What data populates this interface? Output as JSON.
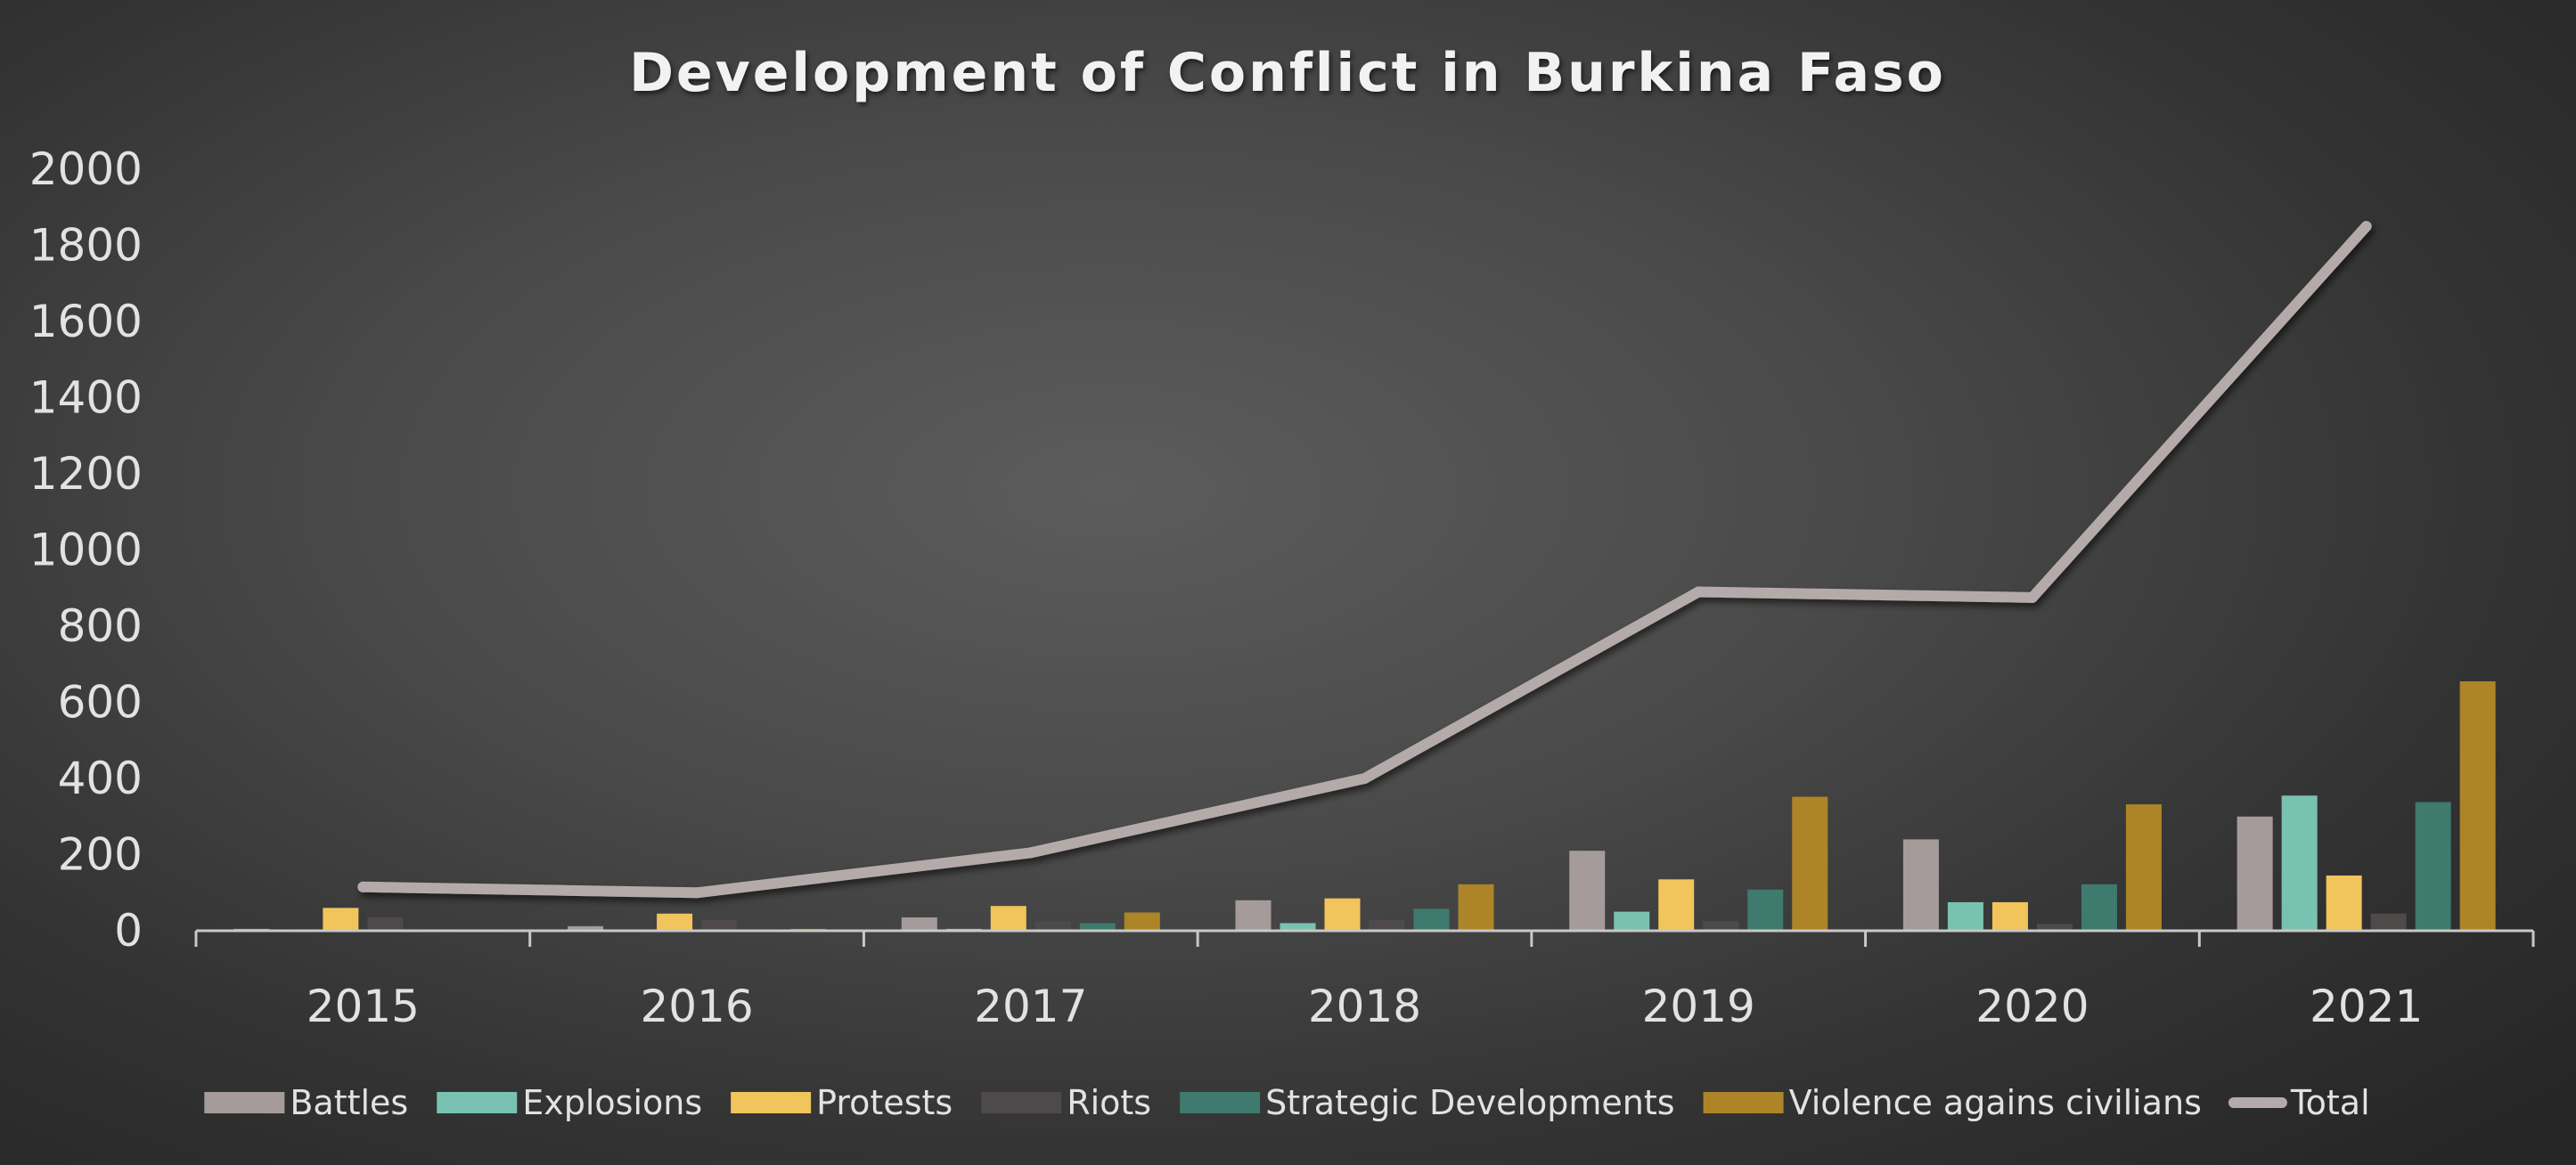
{
  "chart_data": {
    "type": "bar",
    "title": "Development of Conflict in Burkina Faso",
    "xlabel": "",
    "ylabel": "",
    "ylim": [
      0,
      2000
    ],
    "yticks": [
      0,
      200,
      400,
      600,
      800,
      1000,
      1200,
      1400,
      1600,
      1800,
      2000
    ],
    "categories": [
      "2015",
      "2016",
      "2017",
      "2018",
      "2019",
      "2020",
      "2021"
    ],
    "grid": false,
    "legend_position": "bottom",
    "series": [
      {
        "name": "Battles",
        "type": "bar",
        "color": "#a69b9b",
        "values": [
          5,
          12,
          35,
          80,
          210,
          240,
          300
        ]
      },
      {
        "name": "Explosions",
        "type": "bar",
        "color": "#79c2b2",
        "values": [
          1,
          0,
          5,
          20,
          50,
          75,
          355
        ]
      },
      {
        "name": "Protests",
        "type": "bar",
        "color": "#f1c45c",
        "values": [
          60,
          45,
          65,
          85,
          135,
          75,
          145
        ]
      },
      {
        "name": "Riots",
        "type": "bar",
        "color": "#4e4a4a",
        "values": [
          35,
          28,
          25,
          28,
          25,
          18,
          45
        ]
      },
      {
        "name": "Strategic Developments",
        "type": "bar",
        "color": "#3e7a6e",
        "values": [
          2,
          0,
          20,
          58,
          108,
          122,
          338
        ]
      },
      {
        "name": "Violence agains civilians",
        "type": "bar",
        "color": "#ad8528",
        "values": [
          2,
          5,
          48,
          122,
          352,
          332,
          655
        ]
      },
      {
        "name": "Total",
        "type": "line",
        "color": "#b5aaaa",
        "values": [
          115,
          100,
          205,
          400,
          890,
          875,
          1850
        ]
      }
    ]
  }
}
